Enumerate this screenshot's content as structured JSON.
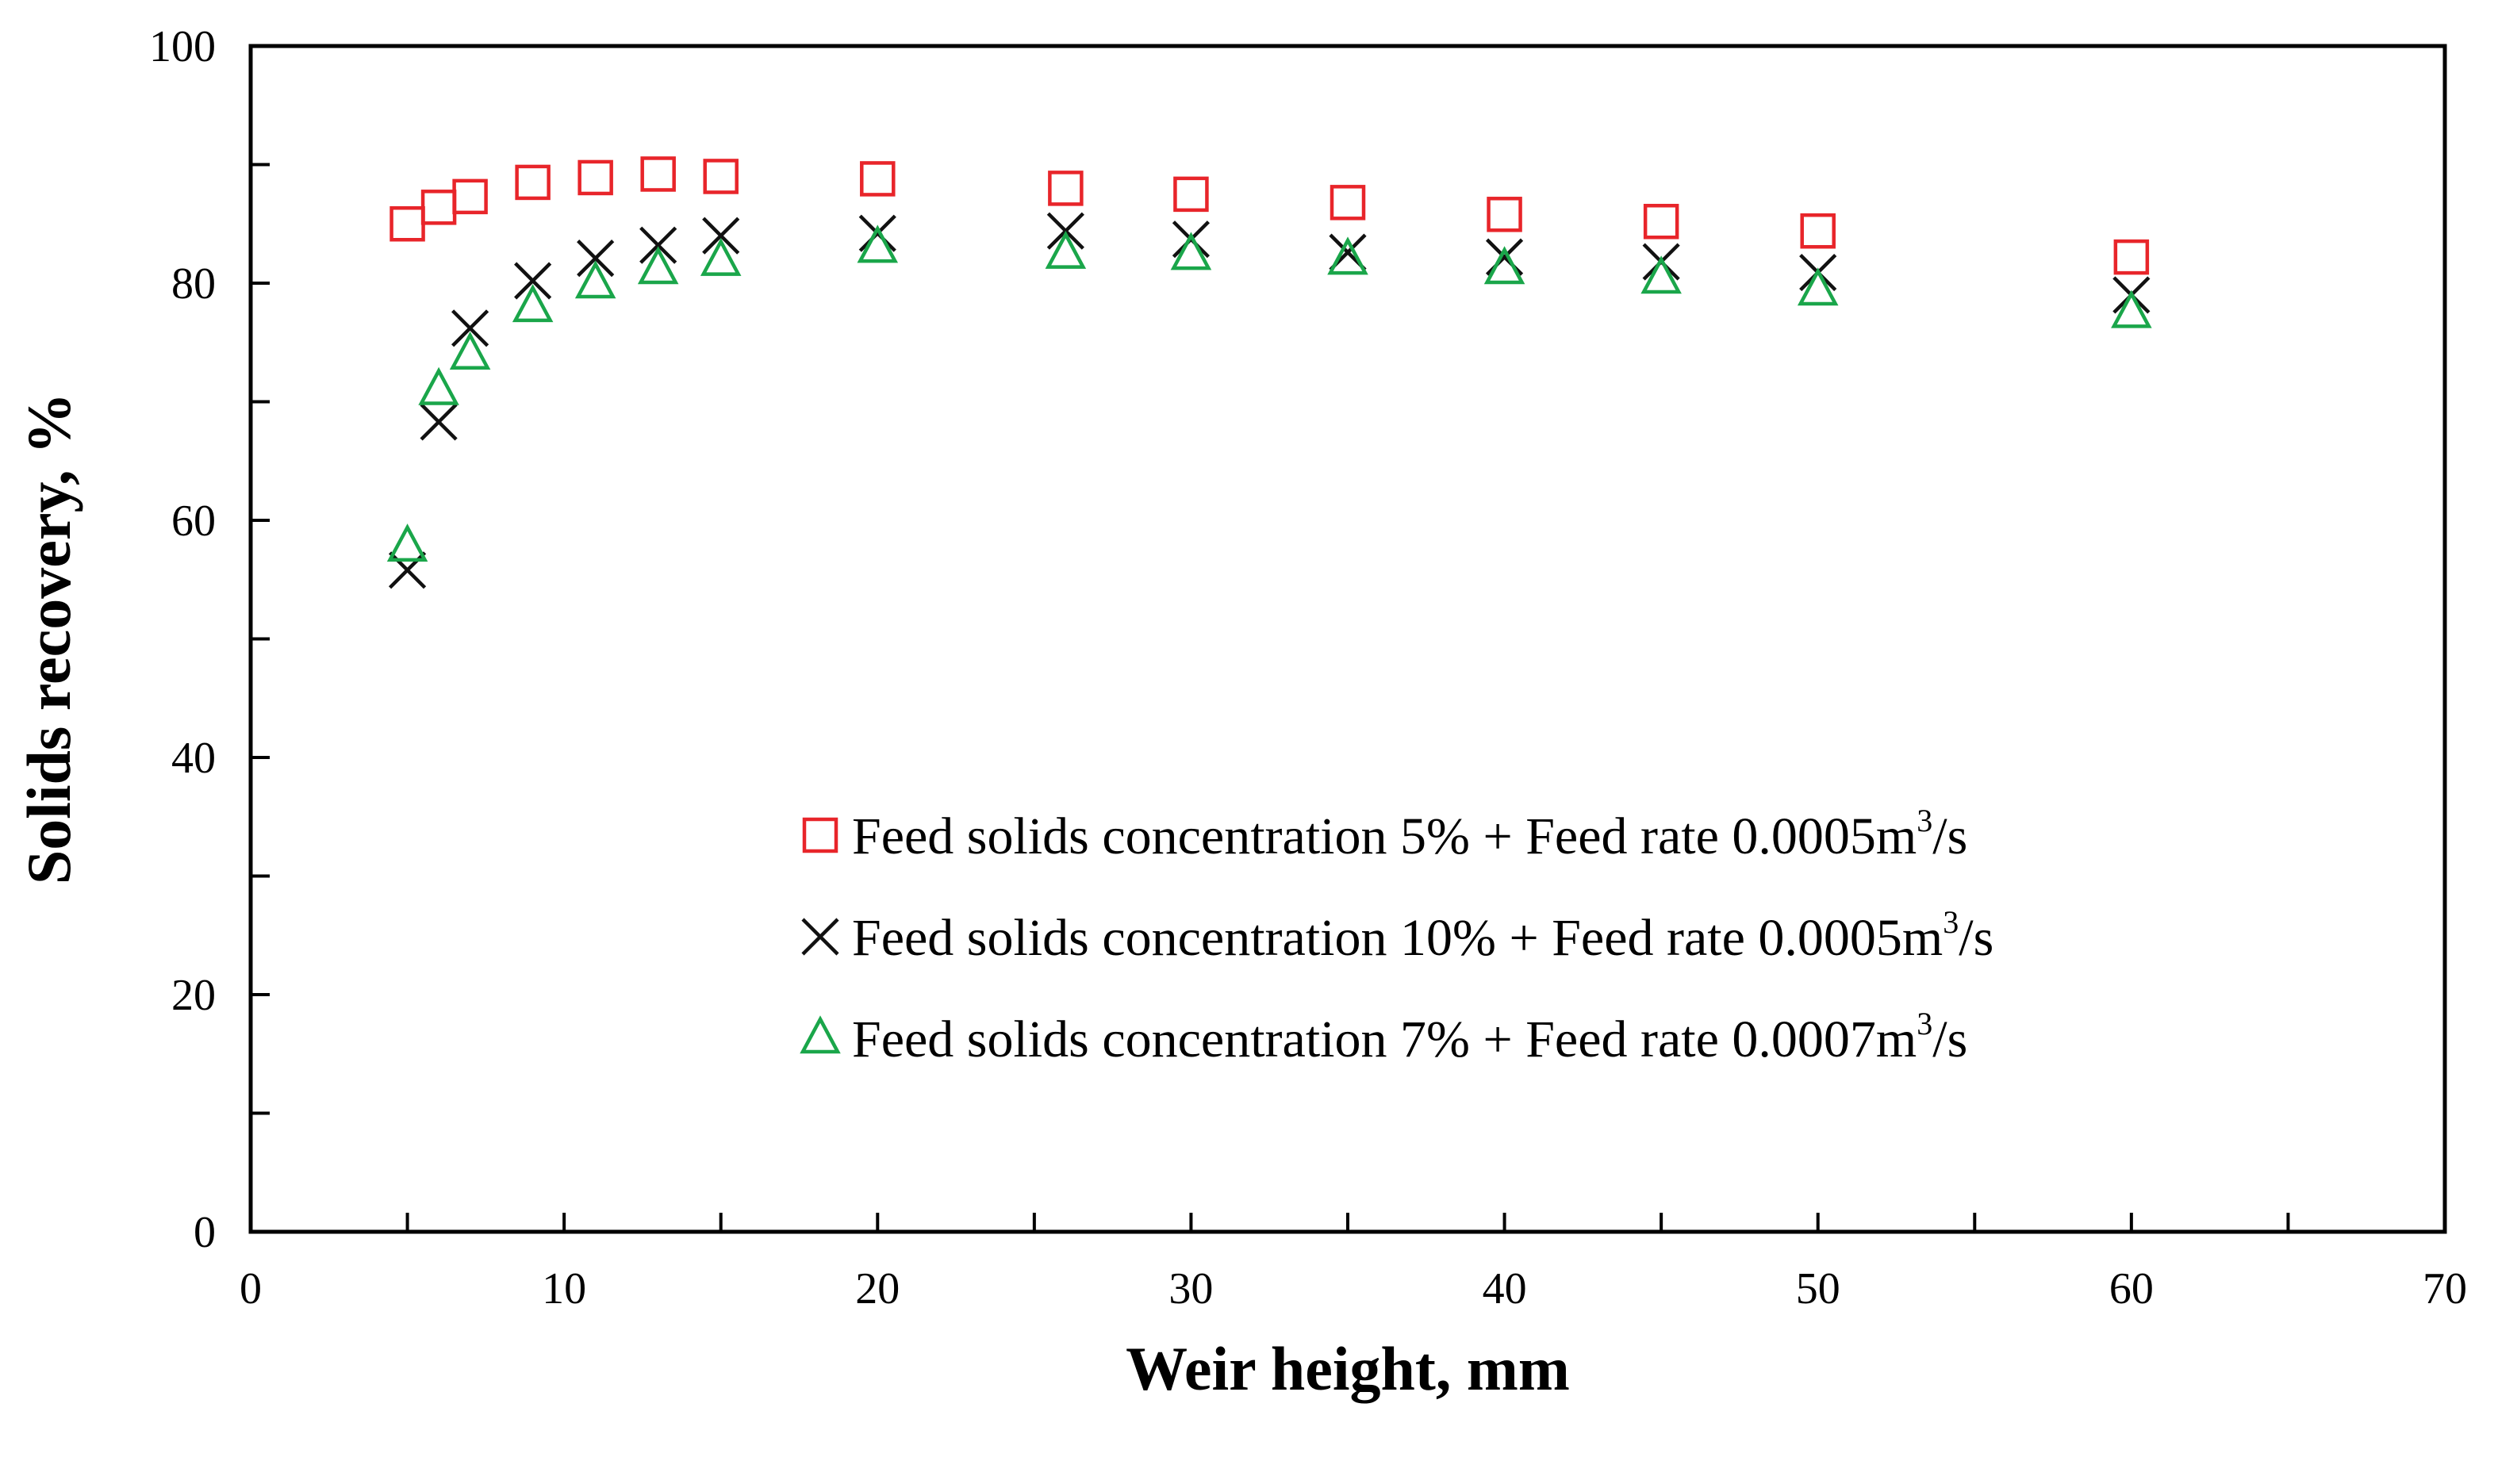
{
  "chart_data": {
    "type": "scatter",
    "title": "",
    "xlabel": "Weir height, mm",
    "ylabel": "Solids recovery,  %",
    "xlim": [
      0,
      70
    ],
    "ylim": [
      0,
      100
    ],
    "xticks": [
      0,
      10,
      20,
      30,
      40,
      50,
      60,
      70
    ],
    "yticks": [
      0,
      20,
      40,
      60,
      80,
      100
    ],
    "grid": false,
    "legend_position": "lower-right",
    "series": [
      {
        "name": "Feed solids concentration 5% + Feed rate 0.0005",
        "unit_base": "m",
        "unit_exp": "3",
        "unit_tail": "/s",
        "marker": "square",
        "color": "#e8252a",
        "x": [
          5,
          6,
          7,
          9,
          11,
          13,
          15,
          20,
          26,
          30,
          35,
          40,
          45,
          50,
          60
        ],
        "y": [
          85.0,
          86.4,
          87.3,
          88.5,
          88.9,
          89.2,
          89.0,
          88.8,
          88.0,
          87.5,
          86.8,
          85.8,
          85.2,
          84.4,
          82.2
        ]
      },
      {
        "name": "Feed solids concentration 10% + Feed rate 0.0005",
        "unit_base": "m",
        "unit_exp": "3",
        "unit_tail": "/s",
        "marker": "x",
        "color": "#111111",
        "x": [
          5,
          6,
          7,
          9,
          11,
          13,
          15,
          20,
          26,
          30,
          35,
          40,
          45,
          50,
          60
        ],
        "y": [
          55.8,
          68.3,
          76.2,
          80.2,
          82.1,
          83.2,
          84.0,
          84.2,
          84.4,
          83.7,
          82.6,
          82.2,
          81.8,
          80.9,
          79.0
        ]
      },
      {
        "name": "Feed solids concentration 7% + Feed rate 0.0007",
        "unit_base": "m",
        "unit_exp": "3",
        "unit_tail": "/s",
        "marker": "triangle",
        "color": "#1aa64a",
        "x": [
          5,
          6,
          7,
          9,
          11,
          13,
          15,
          20,
          26,
          30,
          35,
          40,
          45,
          50,
          60
        ],
        "y": [
          57.8,
          71.0,
          74.0,
          78.0,
          80.0,
          81.2,
          81.9,
          83.0,
          82.5,
          82.4,
          82.0,
          81.2,
          80.4,
          79.4,
          77.5
        ]
      }
    ]
  }
}
